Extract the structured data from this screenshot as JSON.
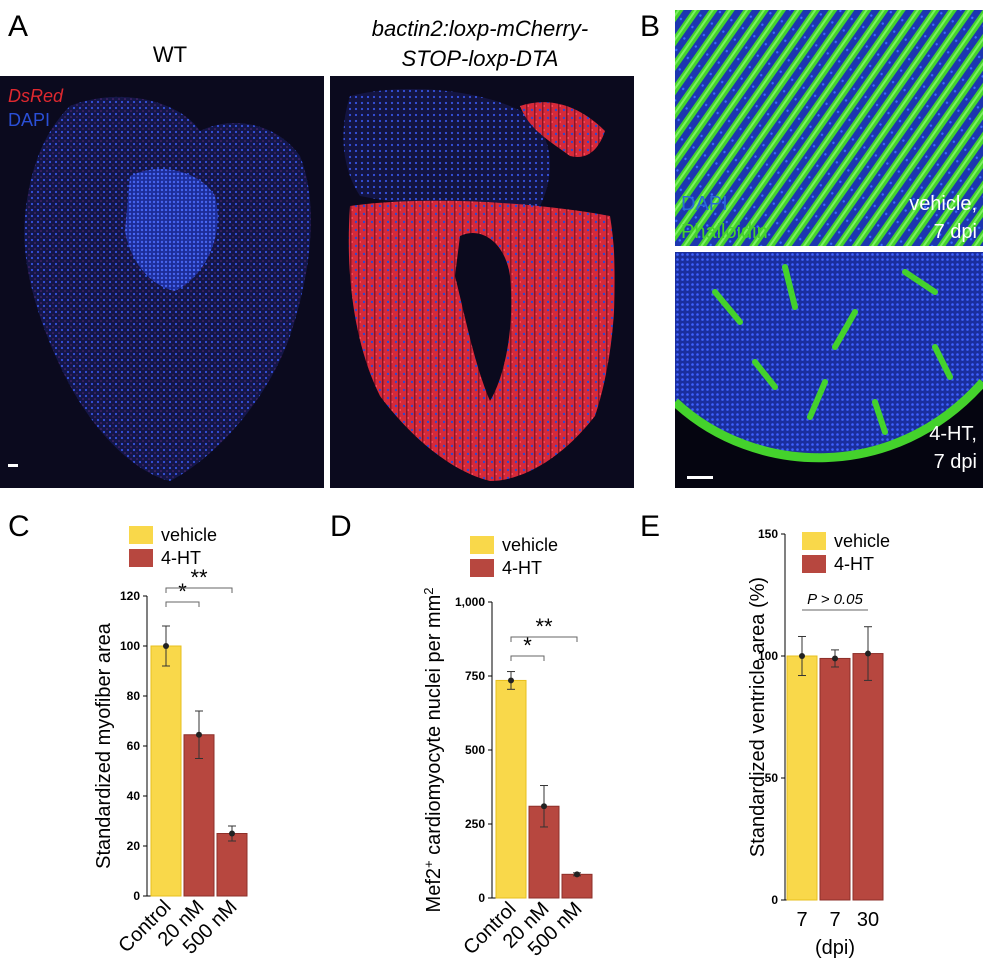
{
  "panel_labels": {
    "a": "A",
    "b": "B",
    "c": "C",
    "d": "D",
    "e": "E"
  },
  "panel_a": {
    "left_title": "WT",
    "right_title_line1": "bactin2:loxp-mCherry-",
    "right_title_line2": "STOP-loxp-DTA",
    "legend_line1": "DsRed",
    "legend_line2": "DAPI",
    "colors": {
      "dsred": "#e0282f",
      "dapi": "#2a4fd6",
      "background": "#0b0a1e"
    }
  },
  "panel_b": {
    "legend_line1": "DAPI",
    "legend_line2": "Phalloidin",
    "top_label_line1": "vehicle,",
    "top_label_line2": "7 dpi",
    "bottom_label_line1": "4-HT,",
    "bottom_label_line2": "7 dpi",
    "colors": {
      "phalloidin": "#44d22c",
      "dapi": "#1e3cc8"
    }
  },
  "chart_data": [
    {
      "panel": "C",
      "type": "bar",
      "legend": [
        "vehicle",
        "4-HT"
      ],
      "categories": [
        "Control",
        "20 nM",
        "500 nM"
      ],
      "values": [
        100,
        64.5,
        25
      ],
      "errors": [
        8,
        9.5,
        3
      ],
      "bar_series": [
        "vehicle",
        "4-HT",
        "4-HT"
      ],
      "ylabel": "Standardized myofiber area",
      "ylim": [
        0,
        120
      ],
      "yticks": [
        "0",
        "20",
        "40",
        "60",
        "80",
        "100",
        "120"
      ],
      "significance": [
        "*",
        "**"
      ]
    },
    {
      "panel": "D",
      "type": "bar",
      "legend": [
        "vehicle",
        "4-HT"
      ],
      "categories": [
        "Control",
        "20 nM",
        "500 nM"
      ],
      "values": [
        735,
        310,
        80
      ],
      "errors": [
        30,
        70,
        5
      ],
      "bar_series": [
        "vehicle",
        "4-HT",
        "4-HT"
      ],
      "ylabel_main": "Mef2",
      "ylabel_sup": "+",
      "ylabel_rest": " cardiomyocyte nuclei per mm",
      "ylabel_sup2": "2",
      "ylim": [
        0,
        1000
      ],
      "yticks": [
        "0",
        "250",
        "500",
        "750",
        "1,000"
      ],
      "significance": [
        "*",
        "**"
      ]
    },
    {
      "panel": "E",
      "type": "bar",
      "legend": [
        "vehicle",
        "4-HT"
      ],
      "categories": [
        "7",
        "7",
        "30"
      ],
      "values": [
        100,
        99,
        101
      ],
      "errors": [
        8,
        3.5,
        11
      ],
      "bar_series": [
        "vehicle",
        "4-HT",
        "4-HT"
      ],
      "xlabel": "(dpi)",
      "ylabel": "Standardized ventricle area (%)",
      "ylim": [
        0,
        150
      ],
      "yticks": [
        "0",
        "50",
        "100",
        "150"
      ],
      "annotation": "P > 0.05"
    }
  ],
  "colors": {
    "vehicle": "#f9d84a",
    "vehicle_edge": "#e7bf1e",
    "ht": "#b7473f",
    "ht_edge": "#8e2f29"
  }
}
